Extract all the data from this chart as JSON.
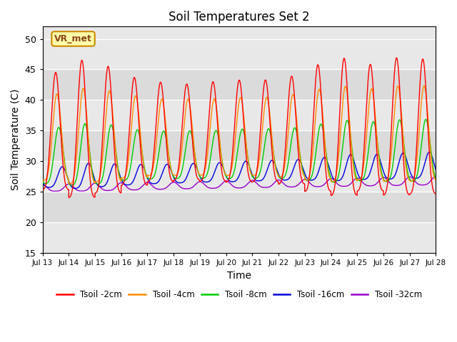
{
  "title": "Soil Temperatures Set 2",
  "xlabel": "Time",
  "ylabel": "Soil Temperature (C)",
  "ylim": [
    15,
    52
  ],
  "yticks": [
    15,
    20,
    25,
    30,
    35,
    40,
    45,
    50
  ],
  "x_tick_labels": [
    "Jul 13",
    "Jul 14",
    "Jul 15",
    "Jul 16",
    "Jul 17",
    "Jul 18",
    "Jul 19",
    "Jul 20",
    "Jul 21",
    "Jul 22",
    "Jul 23",
    "Jul 24",
    "Jul 25",
    "Jul 26",
    "Jul 27",
    "Jul 28"
  ],
  "legend_labels": [
    "Tsoil -2cm",
    "Tsoil -4cm",
    "Tsoil -8cm",
    "Tsoil -16cm",
    "Tsoil -32cm"
  ],
  "line_colors": [
    "#ff0000",
    "#ff8c00",
    "#00cc00",
    "#0000dd",
    "#9900cc"
  ],
  "bg_color": "#e8e8e8",
  "annotation_text": "VR_met",
  "annotation_fg": "#8b4513",
  "annotation_bg": "#ffffaa",
  "annotation_edge": "#cc8800",
  "n_days": 15,
  "hrs_per_day": 48,
  "peak_hour": 14.0,
  "mins_per_2cm": {
    "mean": 33.0,
    "amp_base": 12.0,
    "phase_lag": 0.0,
    "trough": 23.0
  },
  "mins_per_4cm": {
    "mean": 32.5,
    "amp_base": 9.0,
    "phase_lag": 1.0,
    "trough": 23.5
  },
  "mins_per_8cm": {
    "mean": 30.0,
    "amp_base": 5.5,
    "phase_lag": 2.5,
    "trough": 24.0
  },
  "mins_per_16cm": {
    "mean": 27.5,
    "amp_base": 2.0,
    "phase_lag": 5.0,
    "trough": 25.0
  },
  "mins_per_32cm": {
    "mean": 25.8,
    "amp_base": 0.8,
    "phase_lag": 10.0,
    "trough": 25.2
  }
}
